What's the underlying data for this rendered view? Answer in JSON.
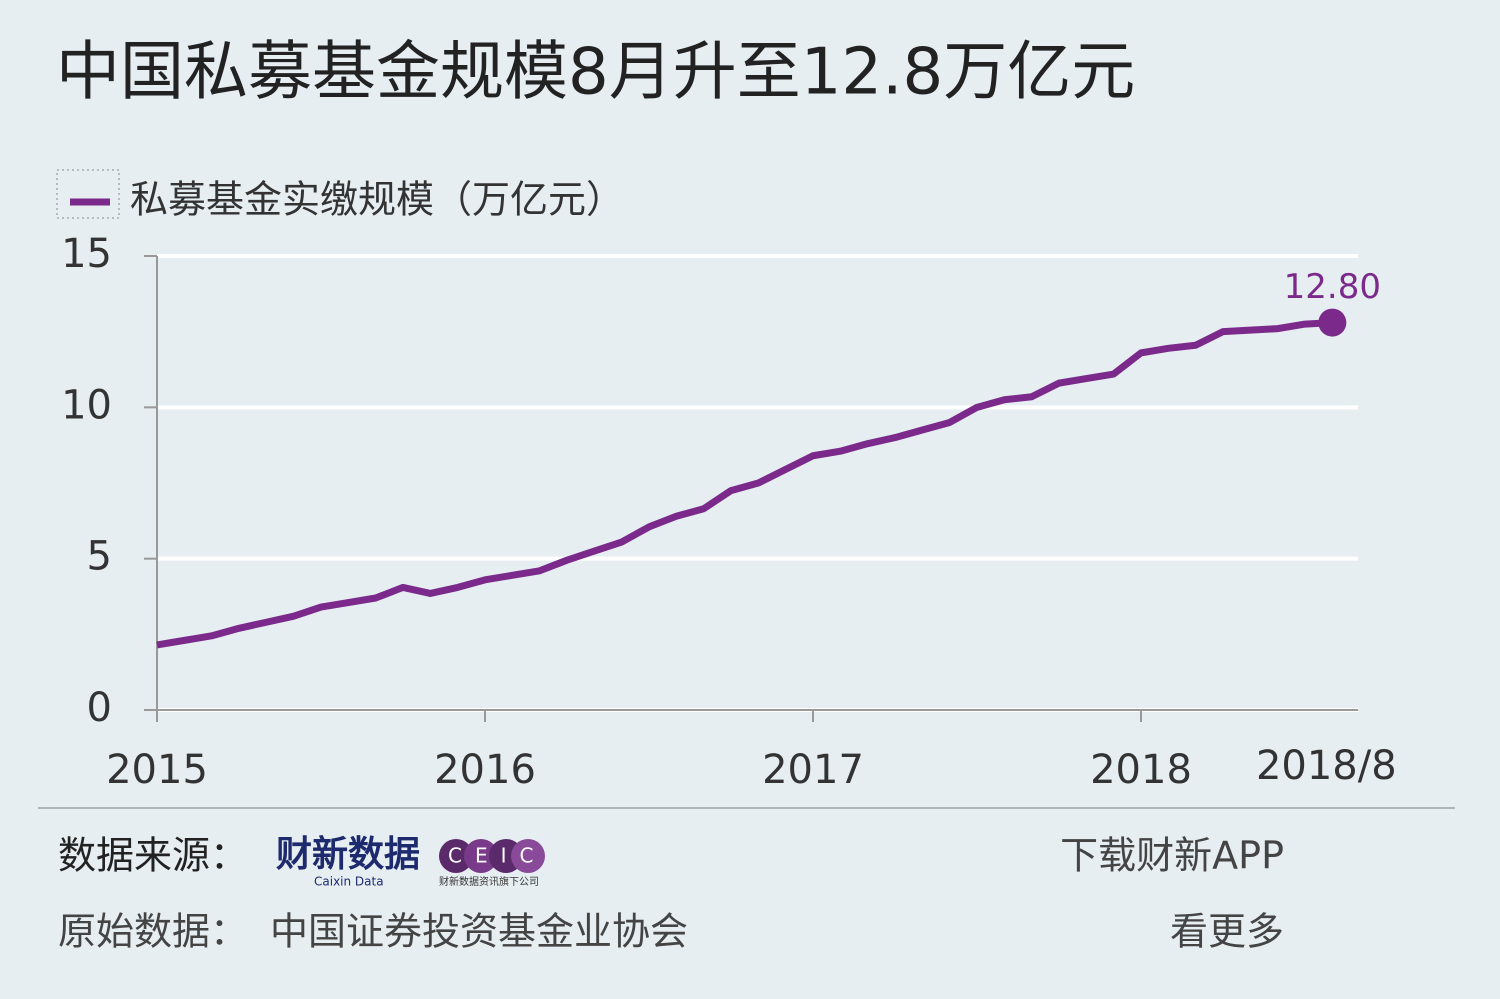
{
  "chart_data": {
    "type": "line",
    "title": "中国私募基金规模8月升至12.8万亿元",
    "categories": [
      "2015",
      null,
      null,
      null,
      null,
      null,
      null,
      null,
      null,
      null,
      null,
      null,
      "2016",
      null,
      null,
      null,
      null,
      null,
      null,
      null,
      null,
      null,
      null,
      null,
      "2017",
      null,
      null,
      null,
      null,
      null,
      null,
      null,
      null,
      null,
      null,
      null,
      "2018",
      null,
      null,
      null,
      null,
      null,
      null,
      "2018/8"
    ],
    "series": [
      {
        "name": "私募基金实缴规模（万亿元）",
        "color": "#7b2a8c",
        "values": [
          2.15,
          2.3,
          2.45,
          2.7,
          2.9,
          3.1,
          3.4,
          3.55,
          3.7,
          4.05,
          3.85,
          4.05,
          4.3,
          4.45,
          4.6,
          4.95,
          5.25,
          5.55,
          6.05,
          6.4,
          6.65,
          7.25,
          7.5,
          7.95,
          8.4,
          8.55,
          8.8,
          9.0,
          9.25,
          9.5,
          10.0,
          10.25,
          10.35,
          10.8,
          10.95,
          11.1,
          11.8,
          11.95,
          12.05,
          12.5,
          12.55,
          12.6,
          12.75,
          12.8
        ],
        "value_labels": [
          null,
          null,
          null,
          null,
          null,
          null,
          null,
          null,
          null,
          null,
          null,
          null,
          null,
          null,
          null,
          null,
          null,
          null,
          null,
          null,
          null,
          null,
          null,
          null,
          null,
          null,
          null,
          null,
          null,
          null,
          null,
          null,
          null,
          null,
          null,
          null,
          null,
          null,
          null,
          null,
          null,
          null,
          null,
          "12.80"
        ]
      }
    ],
    "ylim": [
      0,
      15
    ],
    "yticks": [
      0,
      5,
      10,
      15
    ],
    "grid": true,
    "legend": "top-left"
  },
  "footer": {
    "source_label": "数据来源：",
    "logo_caixin": "财新数据",
    "logo_caixin_en": "Caixin Data",
    "logo_ceic": "CEIC",
    "logo_ceic_sub": "财新数据资讯旗下公司",
    "raw_label": "原始数据：",
    "raw_source": "中国证券投资基金业协会",
    "app_line1": "下载财新APP",
    "app_line2": "看更多"
  }
}
